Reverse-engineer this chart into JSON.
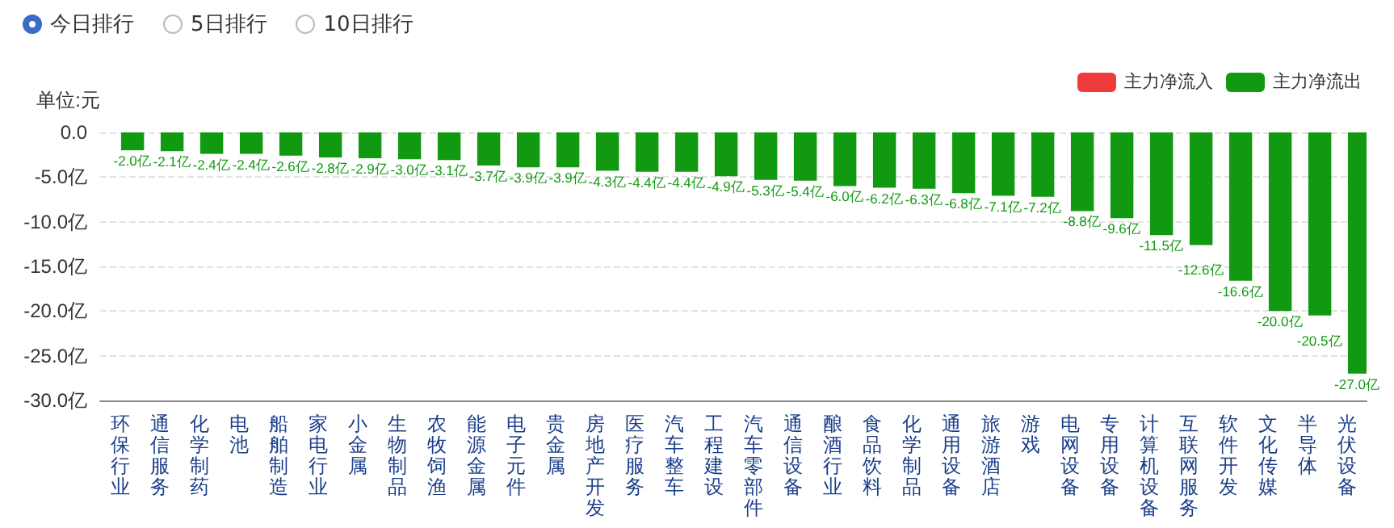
{
  "chart_data": {
    "type": "bar",
    "ylabel": "单位:元",
    "annotations": [
      "今日排行",
      "5日排行",
      "10日排行"
    ],
    "categories": [
      "环保行业",
      "通信服务",
      "化学制药",
      "电池",
      "船舶制造",
      "家电行业",
      "小金属",
      "生物制品",
      "农牧饲渔",
      "能源金属",
      "电子元件",
      "贵金属",
      "房地产开发",
      "医疗服务",
      "汽车整车",
      "工程建设",
      "汽车零部件",
      "通信设备",
      "酿酒行业",
      "食品饮料",
      "化学制品",
      "通用设备",
      "旅游酒店",
      "游戏",
      "电网设备",
      "专用设备",
      "计算机设备",
      "互联网服务",
      "软件开发",
      "文化传媒",
      "半导体",
      "光伏设备"
    ],
    "series": [
      {
        "name": "主力净流入",
        "color": "#ef3b3b",
        "values": [
          null,
          null,
          null,
          null,
          null,
          null,
          null,
          null,
          null,
          null,
          null,
          null,
          null,
          null,
          null,
          null,
          null,
          null,
          null,
          null,
          null,
          null,
          null,
          null,
          null,
          null,
          null,
          null,
          null,
          null,
          null,
          null
        ]
      },
      {
        "name": "主力净流出",
        "color": "#119a11",
        "values": [
          -2.0,
          -2.1,
          -2.4,
          -2.4,
          -2.6,
          -2.8,
          -2.9,
          -3.0,
          -3.1,
          -3.7,
          -3.9,
          -3.9,
          -4.3,
          -4.4,
          -4.4,
          -4.9,
          -5.3,
          -5.4,
          -6.0,
          -6.2,
          -6.3,
          -6.8,
          -7.1,
          -7.2,
          -8.8,
          -9.6,
          -11.5,
          -12.6,
          -16.6,
          -20.0,
          -20.5,
          -27.0
        ],
        "value_labels": [
          "-2.0亿",
          "-2.1亿",
          "-2.4亿",
          "-2.4亿",
          "-2.6亿",
          "-2.8亿",
          "-2.9亿",
          "-3.0亿",
          "-3.1亿",
          "-3.7亿",
          "-3.9亿",
          "-3.9亿",
          "-4.3亿",
          "-4.4亿",
          "-4.4亿",
          "-4.9亿",
          "-5.3亿",
          "-5.4亿",
          "-6.0亿",
          "-6.2亿",
          "-6.3亿",
          "-6.8亿",
          "-7.1亿",
          "-7.2亿",
          "-8.8亿",
          "-9.6亿",
          "-11.5亿",
          "-12.6亿",
          "-16.6亿",
          "-20.0亿",
          "-20.5亿",
          "-27.0亿"
        ]
      }
    ],
    "ylim": [
      -30,
      0
    ],
    "yticks": [
      {
        "value": 0,
        "label": "0.0"
      },
      {
        "value": -5,
        "label": "-5.0亿"
      },
      {
        "value": -10,
        "label": "-10.0亿"
      },
      {
        "value": -15,
        "label": "-15.0亿"
      },
      {
        "value": -20,
        "label": "-20.0亿"
      },
      {
        "value": -25,
        "label": "-25.0亿"
      },
      {
        "value": -30,
        "label": "-30.0亿"
      }
    ],
    "grid": "y",
    "legend": "top right"
  }
}
